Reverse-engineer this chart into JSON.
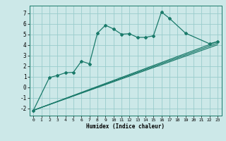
{
  "xlabel": "Humidex (Indice chaleur)",
  "background_color": "#cce8e8",
  "grid_color": "#99cccc",
  "line_color": "#1a7a6a",
  "xlim": [
    -0.5,
    23.5
  ],
  "ylim": [
    -2.7,
    7.7
  ],
  "yticks": [
    -2,
    -1,
    0,
    1,
    2,
    3,
    4,
    5,
    6,
    7
  ],
  "xticks": [
    0,
    1,
    2,
    3,
    4,
    5,
    6,
    7,
    8,
    9,
    10,
    11,
    12,
    13,
    14,
    15,
    16,
    17,
    18,
    19,
    20,
    21,
    22,
    23
  ],
  "series": [
    {
      "x": [
        0,
        2,
        3,
        4,
        5,
        6,
        7,
        8,
        9,
        10,
        11,
        12,
        13,
        14,
        15,
        16,
        17,
        19,
        22,
        23
      ],
      "y": [
        -2.2,
        0.9,
        1.1,
        1.35,
        1.4,
        2.45,
        2.2,
        5.1,
        5.85,
        5.5,
        5.0,
        5.05,
        4.7,
        4.7,
        4.85,
        7.1,
        6.5,
        5.1,
        4.1,
        4.3
      ],
      "marker": true
    },
    {
      "x": [
        0,
        23
      ],
      "y": [
        -2.2,
        4.3
      ],
      "marker": false
    },
    {
      "x": [
        0,
        23
      ],
      "y": [
        -2.2,
        4.15
      ],
      "marker": false
    },
    {
      "x": [
        0,
        23
      ],
      "y": [
        -2.2,
        4.0
      ],
      "marker": false
    }
  ]
}
